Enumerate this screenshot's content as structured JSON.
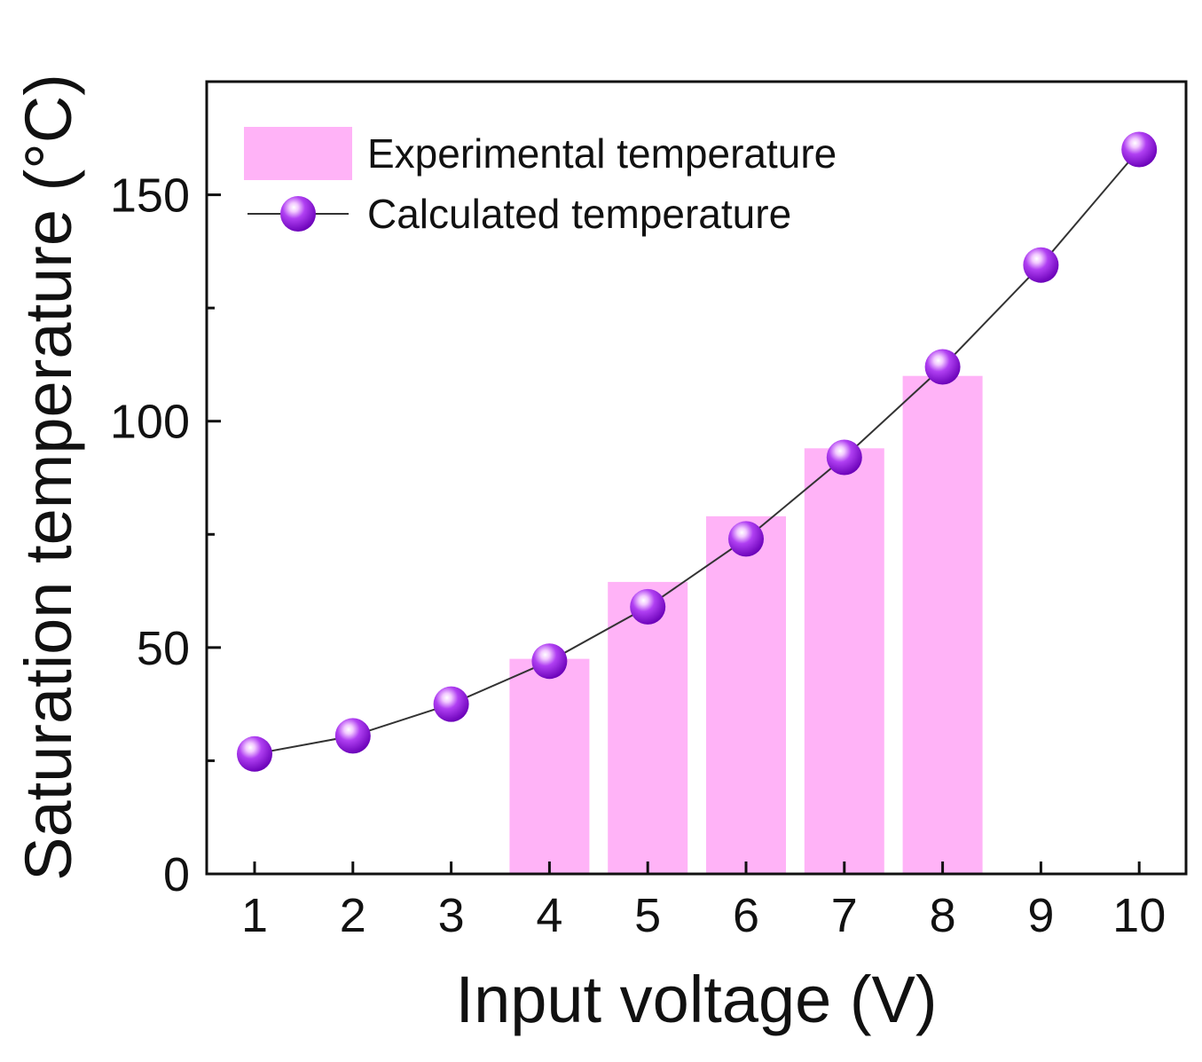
{
  "chart_data": {
    "type": "bar",
    "title": "",
    "xlabel": "Input voltage (V)",
    "ylabel": "Saturation temperature (°C)",
    "xlim": [
      0.5,
      10.5
    ],
    "ylim": [
      0,
      175
    ],
    "categories": [
      "1",
      "2",
      "3",
      "4",
      "5",
      "6",
      "7",
      "8",
      "9",
      "10"
    ],
    "x_ticks": [
      "1",
      "2",
      "3",
      "4",
      "5",
      "6",
      "7",
      "8",
      "9",
      "10"
    ],
    "y_ticks": [
      "0",
      "50",
      "100",
      "150"
    ],
    "y_tick_values": [
      0,
      50,
      100,
      150
    ],
    "y_minor_tick_values": [
      25,
      75,
      125
    ],
    "legend_position": "top-left",
    "series": [
      {
        "name": "Experimental temperature",
        "kind": "bar",
        "color": "#ffb3f7",
        "x": [
          4,
          5,
          6,
          7,
          8
        ],
        "values": [
          47.5,
          64.5,
          79,
          94,
          110
        ]
      },
      {
        "name": "Calculated temperature",
        "kind": "line-marker",
        "color": "#9b1be6",
        "line_color": "#333333",
        "x": [
          1,
          2,
          3,
          4,
          5,
          6,
          7,
          8,
          9,
          10
        ],
        "values": [
          26.5,
          30.5,
          37.5,
          47,
          59,
          74,
          92,
          112,
          134.5,
          160
        ]
      }
    ]
  }
}
